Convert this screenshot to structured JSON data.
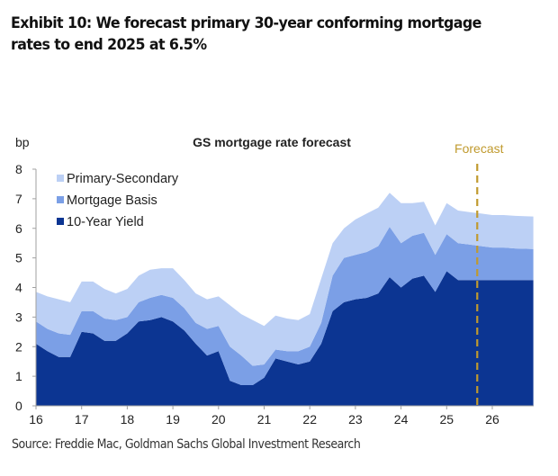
{
  "exhibit": {
    "title": "Exhibit 10: We forecast primary 30-year conforming mortgage rates to end 2025 at 6.5%",
    "source": "Source: Freddie Mac, Goldman Sachs Global Investment Research"
  },
  "chart_data": {
    "type": "area",
    "stacked": true,
    "title": "GS mortgage rate forecast",
    "ylabel": "bp",
    "xlabel": "",
    "ylim": [
      0,
      8
    ],
    "xlim": [
      16,
      26.9
    ],
    "yticks": [
      "0",
      "1",
      "2",
      "3",
      "4",
      "5",
      "6",
      "7",
      "8"
    ],
    "xticks": [
      "16",
      "17",
      "18",
      "19",
      "20",
      "21",
      "22",
      "23",
      "24",
      "25",
      "26"
    ],
    "grid": false,
    "legend_position": "top-left",
    "forecast_marker": {
      "label": "Forecast",
      "x": 25.67,
      "color": "#c09a2e"
    },
    "x": [
      16.0,
      16.25,
      16.5,
      16.75,
      17.0,
      17.25,
      17.5,
      17.75,
      18.0,
      18.25,
      18.5,
      18.75,
      19.0,
      19.25,
      19.5,
      19.75,
      20.0,
      20.25,
      20.5,
      20.75,
      21.0,
      21.25,
      21.5,
      21.75,
      22.0,
      22.25,
      22.5,
      22.75,
      23.0,
      23.25,
      23.5,
      23.75,
      24.0,
      24.25,
      24.5,
      24.75,
      25.0,
      25.25,
      25.5,
      25.75,
      26.0,
      26.25,
      26.5,
      26.9
    ],
    "series": [
      {
        "name": "10-Year Yield",
        "color": "#0c3592",
        "values": [
          2.1,
          1.85,
          1.65,
          1.65,
          2.5,
          2.45,
          2.2,
          2.2,
          2.45,
          2.85,
          2.9,
          3.0,
          2.85,
          2.55,
          2.1,
          1.7,
          1.85,
          0.85,
          0.7,
          0.7,
          0.95,
          1.6,
          1.5,
          1.4,
          1.5,
          2.1,
          3.2,
          3.5,
          3.6,
          3.65,
          3.8,
          4.35,
          4.0,
          4.3,
          4.4,
          3.85,
          4.55,
          4.25,
          4.25,
          4.25,
          4.25,
          4.25,
          4.25,
          4.25
        ]
      },
      {
        "name": "Mortgage Basis",
        "color": "#7b9fe6",
        "values": [
          0.75,
          0.75,
          0.8,
          0.75,
          0.7,
          0.75,
          0.75,
          0.7,
          0.55,
          0.65,
          0.75,
          0.75,
          0.8,
          0.75,
          0.7,
          0.9,
          0.85,
          1.15,
          1.0,
          0.65,
          0.45,
          0.3,
          0.35,
          0.45,
          0.5,
          0.7,
          1.2,
          1.5,
          1.5,
          1.55,
          1.6,
          1.7,
          1.5,
          1.45,
          1.45,
          1.25,
          1.25,
          1.25,
          1.2,
          1.15,
          1.1,
          1.1,
          1.07,
          1.05
        ]
      },
      {
        "name": "Primary-Secondary",
        "color": "#bcd0f5",
        "values": [
          1.0,
          1.1,
          1.15,
          1.1,
          1.0,
          1.0,
          1.0,
          0.9,
          0.95,
          0.9,
          0.95,
          0.9,
          1.0,
          0.95,
          1.0,
          1.0,
          1.0,
          1.4,
          1.4,
          1.55,
          1.3,
          1.15,
          1.1,
          1.05,
          1.1,
          1.5,
          1.1,
          1.0,
          1.2,
          1.3,
          1.3,
          1.15,
          1.35,
          1.1,
          1.05,
          1.0,
          1.05,
          1.1,
          1.1,
          1.1,
          1.1,
          1.1,
          1.1,
          1.1
        ]
      }
    ],
    "legend": [
      "Primary-Secondary",
      "Mortgage Basis",
      "10-Year Yield"
    ]
  }
}
